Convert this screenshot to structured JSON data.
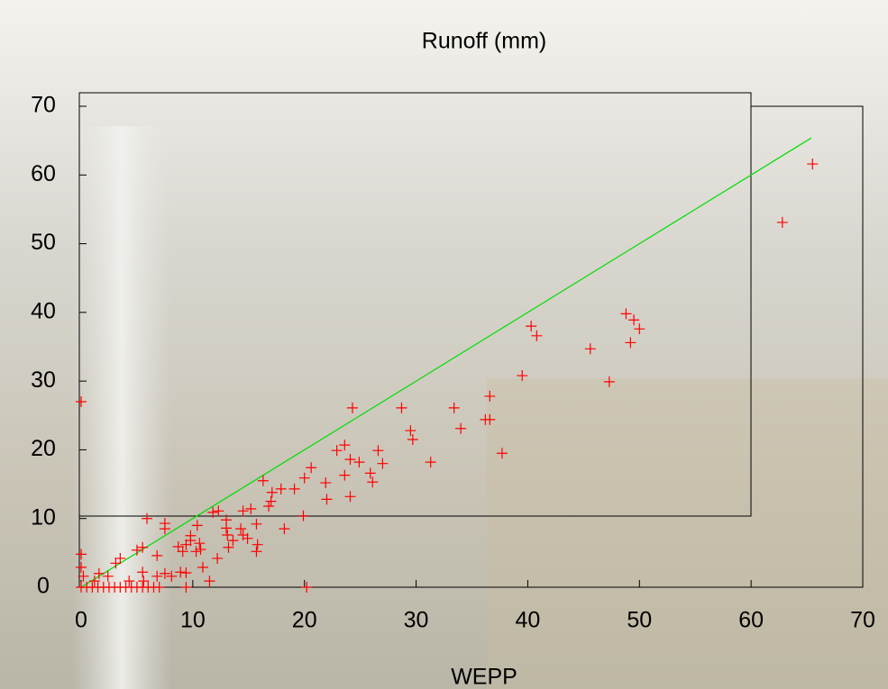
{
  "chart_data": {
    "type": "scatter",
    "title": "Runoff (mm)",
    "x_label": "WEPP",
    "xlim": [
      0,
      70
    ],
    "ylim": [
      0,
      70
    ],
    "xticks": [
      0,
      10,
      20,
      30,
      40,
      50,
      60,
      70
    ],
    "yticks": [
      0,
      10,
      20,
      30,
      40,
      50,
      60,
      70
    ],
    "grid": false,
    "series": [
      {
        "color": "#ff0000",
        "marker": "+",
        "x": [
          0,
          28.7,
          24.3,
          33.4,
          36.6,
          36.2,
          36.6,
          34.0,
          29.5,
          29.7,
          37.7,
          31.3,
          39.5,
          40.3,
          40.8,
          45.6,
          47.3,
          48.8,
          49.5,
          50.0,
          49.2,
          62.8,
          65.5,
          20.2,
          19.9,
          18.2,
          16.3,
          17.9,
          19.1,
          20.0,
          20.6,
          21.9,
          22.0,
          22.9,
          23.6,
          23.6,
          24.1,
          24.1,
          24.9,
          25.9,
          26.1,
          26.6,
          27.0,
          17.0,
          16.8,
          17.1,
          5.9,
          7.5,
          7.5,
          10.4,
          11.8,
          13.0,
          13.0,
          13.1,
          13.6,
          14.3,
          14.5,
          14.9,
          14.5,
          15.2,
          15.7,
          15.8,
          15.7,
          12.3,
          13.2,
          12.2,
          11.5,
          10.9,
          10.3,
          9.8,
          9.4,
          9.8,
          10.6,
          10.7,
          9.1,
          8.7,
          9.4,
          8.9,
          9.4,
          7.5,
          6.8,
          5.5,
          5.0,
          5.5,
          3.5,
          3.1,
          1.6,
          0,
          0,
          0.2,
          2.4,
          1.2,
          4.3,
          5.6,
          6.8,
          8.1,
          0,
          0.5,
          1.0,
          1.5,
          2.0,
          2.5,
          3.0,
          3.5,
          4.0,
          4.5,
          5.0,
          5.5,
          6.0,
          6.5,
          7.0
        ],
        "values": [
          27,
          26.1,
          26.1,
          26.1,
          27.8,
          24.4,
          24.4,
          23.1,
          22.8,
          21.5,
          19.5,
          18.2,
          30.8,
          38.0,
          36.6,
          34.7,
          29.9,
          39.8,
          38.9,
          37.6,
          35.6,
          53.1,
          61.6,
          0,
          10.4,
          8.5,
          15.5,
          14.3,
          14.3,
          15.9,
          17.4,
          15.2,
          12.8,
          19.9,
          20.7,
          16.3,
          13.2,
          18.6,
          18.2,
          16.6,
          15.3,
          19.9,
          18.0,
          12.5,
          11.8,
          13.8,
          10.0,
          9.3,
          8.5,
          9.0,
          10.9,
          9.8,
          8.6,
          7.6,
          6.8,
          8.5,
          7.6,
          7.1,
          11.1,
          11.4,
          9.2,
          6.2,
          5.2,
          11.1,
          5.8,
          4.2,
          0.9,
          2.9,
          5.2,
          6.8,
          6.2,
          7.5,
          6.4,
          5.5,
          5.2,
          5.9,
          2.1,
          2.2,
          0,
          2.0,
          4.6,
          5.8,
          5.4,
          2.2,
          4.2,
          3.5,
          2.0,
          4.8,
          2.9,
          1.6,
          1.6,
          0.9,
          0.9,
          0.9,
          1.6,
          1.6,
          0,
          0,
          0,
          0,
          0,
          0,
          0,
          0,
          0,
          0,
          0,
          0,
          0,
          0,
          0
        ]
      }
    ],
    "reference_line": {
      "color": "#00dd00",
      "x": [
        0,
        65.4
      ],
      "values": [
        0,
        65.4
      ]
    }
  }
}
